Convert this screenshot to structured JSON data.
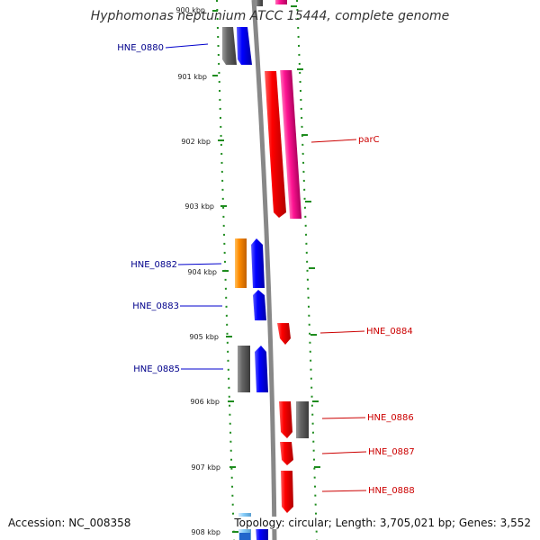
{
  "title": "Hyphomonas neptunium ATCC 15444, complete genome",
  "accession": "Accession: NC_008358",
  "summary": "Topology: circular; Length: 3,705,021 bp; Genes: 3,552",
  "colors": {
    "backbone": "#888888",
    "tick": "#1e8c1e",
    "blue": "#0000ff",
    "red": "#ff0000",
    "pink": "#ff1493",
    "gray": "#555555",
    "orange": "#ff8c00",
    "lightblue": "#87cefa",
    "label_left": "#00008b",
    "label_right": "#cc0000"
  },
  "kbp_labels": [
    "900 kbp",
    "901 kbp",
    "902 kbp",
    "903 kbp",
    "904 kbp",
    "905 kbp",
    "906 kbp",
    "907 kbp",
    "908 kbp"
  ],
  "gene_labels": {
    "left": [
      "HNE_0880",
      "HNE_0882",
      "HNE_0883",
      "HNE_0885"
    ],
    "right": [
      "parC",
      "HNE_0884",
      "HNE_0886",
      "HNE_0887",
      "HNE_0888"
    ]
  }
}
